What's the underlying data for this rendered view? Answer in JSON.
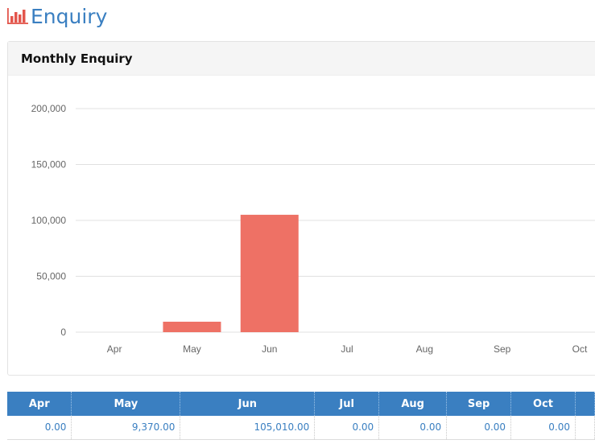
{
  "page": {
    "title": "Enquiry",
    "icon": "bar-chart-icon"
  },
  "panel": {
    "title": "Monthly Enquiry"
  },
  "chart_data": {
    "type": "bar",
    "categories": [
      "Apr",
      "May",
      "Jun",
      "Jul",
      "Aug",
      "Sep",
      "Oct"
    ],
    "values": [
      0,
      9370,
      105010,
      0,
      0,
      0,
      0
    ],
    "yticks": [
      "0",
      "50,000",
      "100,000",
      "150,000",
      "200,000"
    ],
    "ylim": [
      0,
      200000
    ],
    "bar_color": "#ee7165",
    "grid": true,
    "legend": "none"
  },
  "table": {
    "headers": [
      "Apr",
      "May",
      "Jun",
      "Jul",
      "Aug",
      "Sep",
      "Oct"
    ],
    "values": [
      "0.00",
      "9,370.00",
      "105,010.00",
      "0.00",
      "0.00",
      "0.00",
      "0.00"
    ]
  },
  "colors": {
    "accent": "#3a7fc1",
    "icon": "#e3564c"
  }
}
